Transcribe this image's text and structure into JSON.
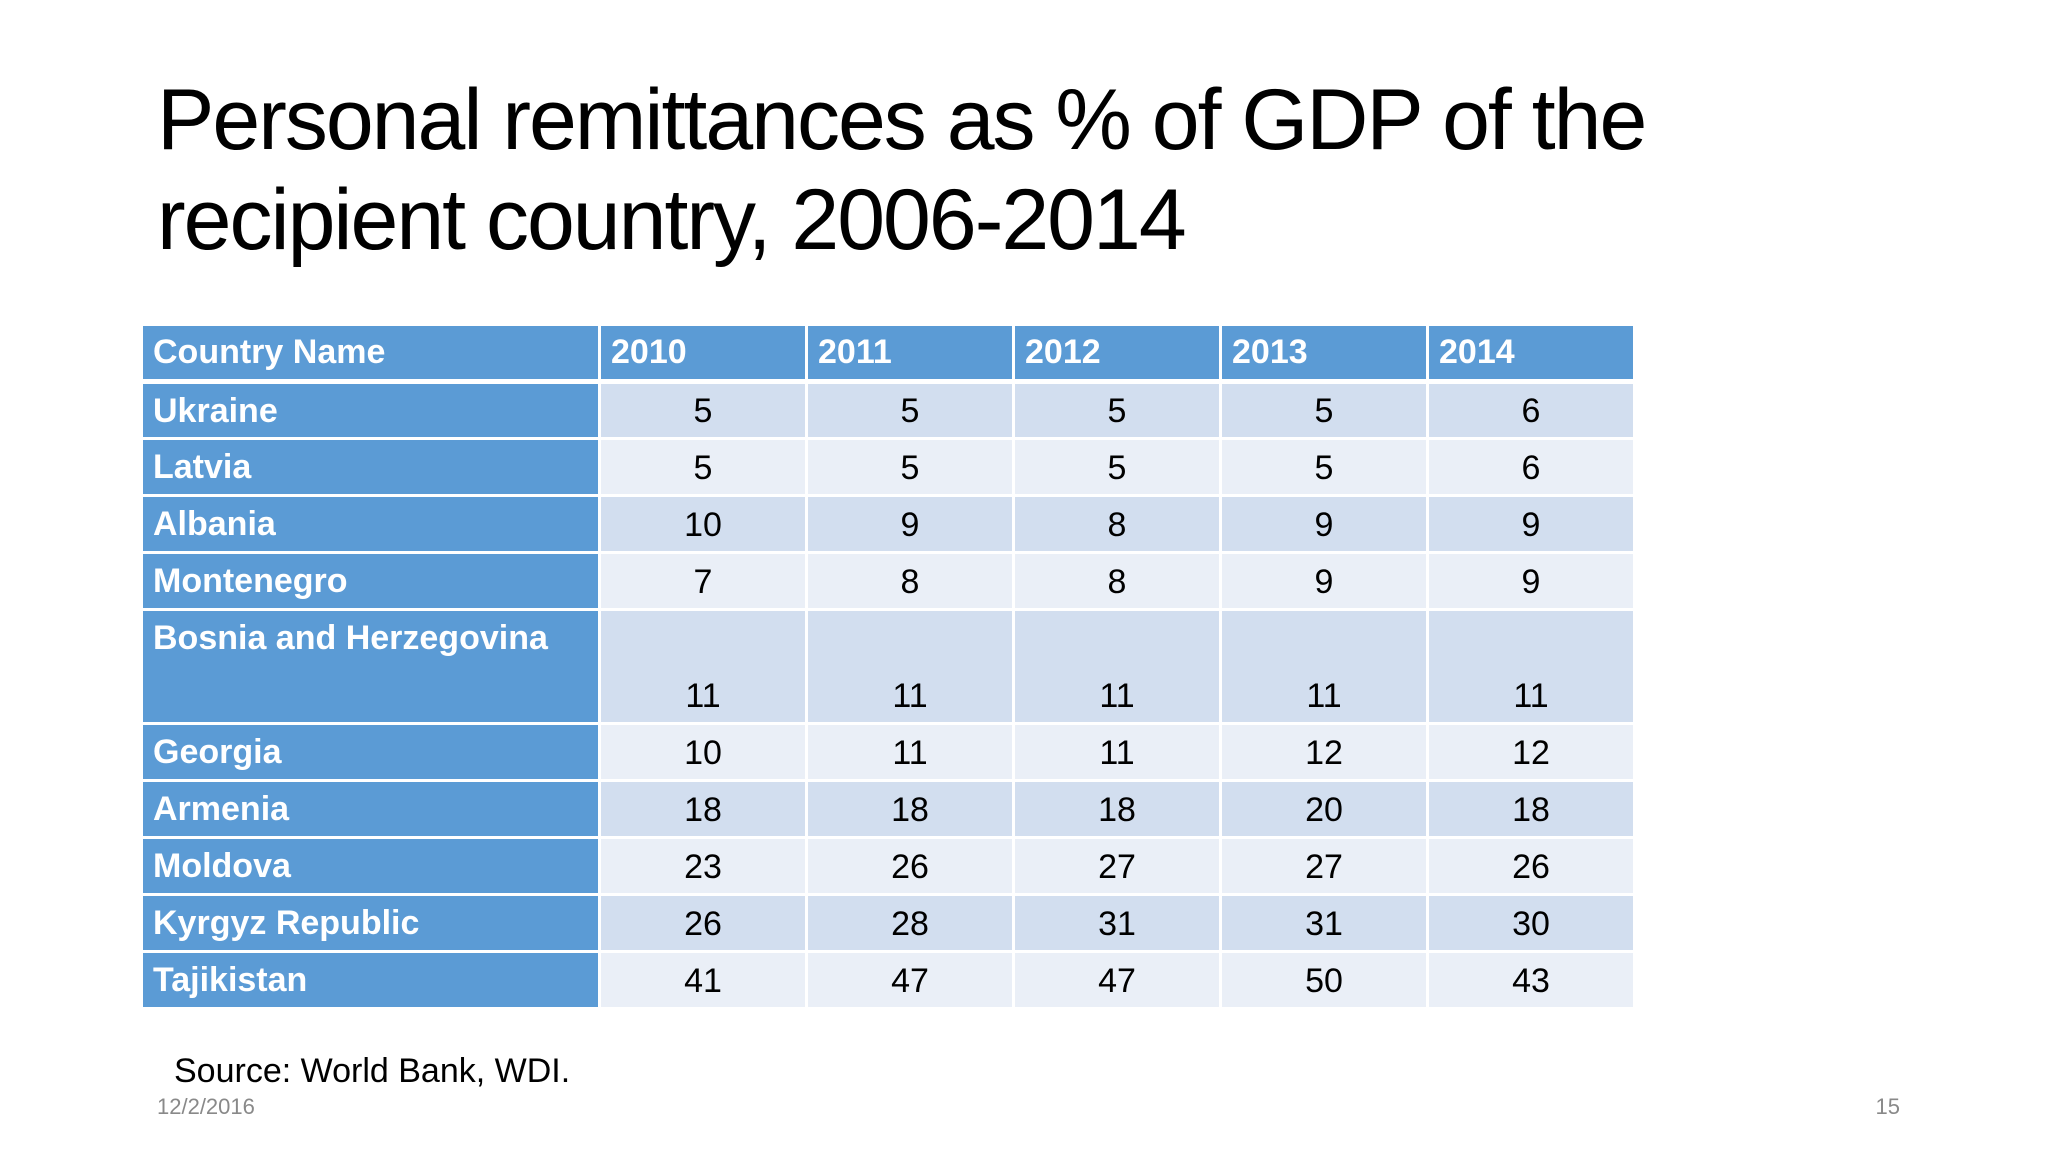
{
  "slide": {
    "title_line1": "Personal remittances as % of GDP of the",
    "title_line2": "recipient country, 2006-2014",
    "table": {
      "headers": [
        "Country Name",
        "2010",
        "2011",
        "2012",
        "2013",
        "2014"
      ],
      "rows": [
        {
          "country": "Ukraine",
          "values": [
            "5",
            "5",
            "5",
            "5",
            "6"
          ]
        },
        {
          "country": "Latvia",
          "values": [
            "5",
            "5",
            "5",
            "5",
            "6"
          ]
        },
        {
          "country": "Albania",
          "values": [
            "10",
            "9",
            "8",
            "9",
            "9"
          ]
        },
        {
          "country": "Montenegro",
          "values": [
            "7",
            "8",
            "8",
            "9",
            "9"
          ]
        },
        {
          "country": "Bosnia and Herzegovina",
          "values": [
            "11",
            "11",
            "11",
            "11",
            "11"
          ]
        },
        {
          "country": "Georgia",
          "values": [
            "10",
            "11",
            "11",
            "12",
            "12"
          ]
        },
        {
          "country": "Armenia",
          "values": [
            "18",
            "18",
            "18",
            "20",
            "18"
          ]
        },
        {
          "country": "Moldova",
          "values": [
            "23",
            "26",
            "27",
            "27",
            "26"
          ]
        },
        {
          "country": "Kyrgyz Republic",
          "values": [
            "26",
            "28",
            "31",
            "31",
            "30"
          ]
        },
        {
          "country": "Tajikistan",
          "values": [
            "41",
            "47",
            "47",
            "50",
            "43"
          ]
        }
      ]
    },
    "source": "Source: World Bank, WDI.",
    "date": "12/2/2016",
    "page_number": "15"
  },
  "colors": {
    "header_blue": "#5b9bd5",
    "row_dark": "#d2deef",
    "row_light": "#eaeff7",
    "footer_gray": "#898989"
  }
}
